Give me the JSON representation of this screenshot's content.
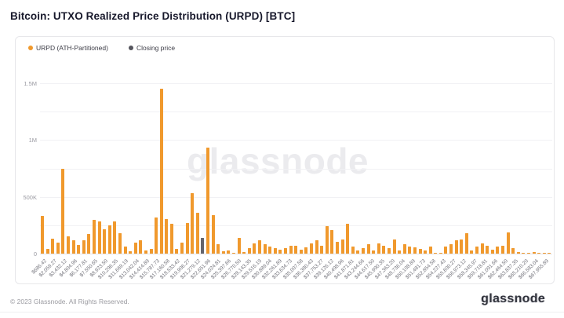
{
  "header": {
    "title": "Bitcoin: UTXO Realized Price Distribution (URPD) [BTC]"
  },
  "legend": {
    "items": [
      {
        "label": "URPD (ATH-Partitioned)",
        "color": "#f0992d",
        "icon": "orange-dot"
      },
      {
        "label": "Closing price",
        "color": "#55555d",
        "icon": "gray-dot"
      }
    ]
  },
  "watermark": "glassnode",
  "footer": {
    "copyright": "© 2023 Glassnode. All Rights Reserved.",
    "logo": "glassnode"
  },
  "colors": {
    "bar": "#f0992d",
    "closing_bar": "#64646c",
    "grid": "#f1f1f4",
    "text_muted": "#9a9aa2"
  },
  "chart_data": {
    "type": "bar",
    "title": "Bitcoin: UTXO Realized Price Distribution (URPD) [BTC]",
    "xlabel": "",
    "ylabel": "",
    "legend_position": "top-left",
    "grid": true,
    "ylim": [
      0,
      1600000
    ],
    "yticks": [
      0,
      500000,
      1000000,
      1500000
    ],
    "ytick_labels": [
      "0",
      "500K",
      "1M",
      "1.5M"
    ],
    "gridline_interval": 250000,
    "x_tick_labels": [
      "$686.42",
      "$2,059.27",
      "$3,432.12",
      "$4,804.96",
      "$6,177.81",
      "$7,550.65",
      "$8,923.50",
      "$10,296.35",
      "$11,669.19",
      "$13,042.04",
      "$14,414.89",
      "$15,787.73",
      "$17,160.58",
      "$18,533.42",
      "$19,906.27",
      "$21,279.12",
      "$22,651.96",
      "$24,024.81",
      "$25,397.66",
      "$26,770.50",
      "$28,143.35",
      "$29,516.19",
      "$30,889.04",
      "$32,261.89",
      "$33,634.73",
      "$35,007.58",
      "$36,380.43",
      "$37,753.27",
      "$39,126.12",
      "$40,498.96",
      "$41,871.81",
      "$43,244.66",
      "$44,617.50",
      "$45,990.35",
      "$47,363.20",
      "$48,736.04",
      "$50,108.89",
      "$51,481.73",
      "$52,854.58",
      "$54,227.43",
      "$55,600.27",
      "$56,973.12",
      "$58,345.97",
      "$59,718.81",
      "$61,091.66",
      "$62,464.50",
      "$63,837.35",
      "$65,210.20",
      "$66,583.04",
      "$67,955.89"
    ],
    "series": [
      {
        "name": "URPD (ATH-Partitioned)",
        "unit": "BTC",
        "values": [
          330000,
          45000,
          130000,
          95000,
          750000,
          155000,
          115000,
          75000,
          115000,
          175000,
          295000,
          285000,
          215000,
          250000,
          285000,
          180000,
          60000,
          20000,
          100000,
          120000,
          25000,
          40000,
          320000,
          1450000,
          305000,
          260000,
          45000,
          95000,
          270000,
          535000,
          360000,
          135000,
          930000,
          340000,
          80000,
          18000,
          25000,
          5000,
          135000,
          14000,
          50000,
          90000,
          120000,
          80000,
          60000,
          47000,
          36000,
          47000,
          70000,
          70000,
          36000,
          52000,
          92000,
          115000,
          70000,
          240000,
          205000,
          105000,
          125000,
          265000,
          60000,
          25000,
          47000,
          80000,
          29000,
          92000,
          70000,
          47000,
          125000,
          29000,
          80000,
          59000,
          52000,
          43000,
          25000,
          59000,
          9000,
          7000,
          59000,
          80000,
          115000,
          125000,
          180000,
          25000,
          59000,
          92000,
          70000,
          36000,
          59000,
          70000,
          190000,
          47000,
          14000,
          7000,
          3000,
          11000,
          2000,
          5000,
          4000
        ]
      }
    ],
    "closing_price_bar_index": 31,
    "annotations": [
      "closing price marked as gray bar near $22,651.96 bin"
    ]
  }
}
